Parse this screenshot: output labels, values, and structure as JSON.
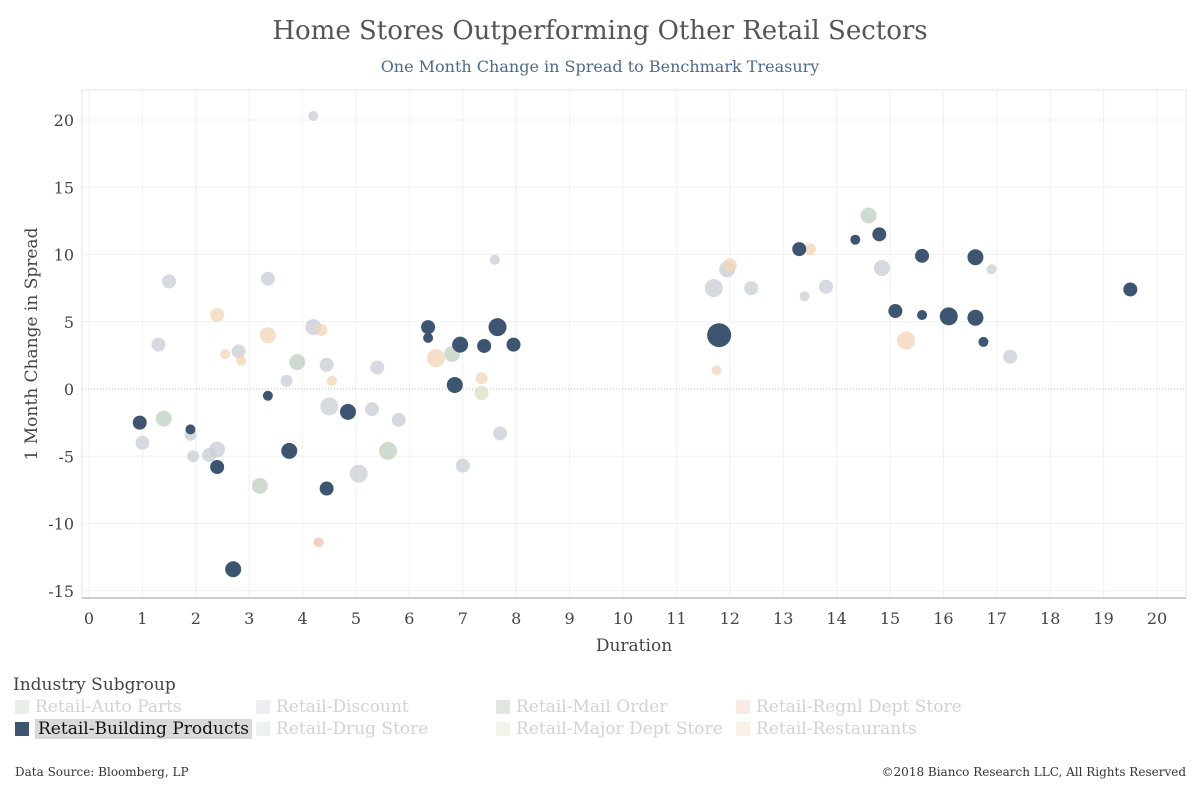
{
  "colors": {
    "Retail-Auto Parts": "#bfcfc0",
    "Retail-Discount": "#c8ced6",
    "Retail-Mail Order": "#a9b8a8",
    "Retail-Regnl Dept Store": "#efc2ae",
    "Retail-Building Products": "#3d5570",
    "Retail-Drug Store": "#c9dccf",
    "Retail-Major Dept Store": "#dedcc0",
    "Retail-Restaurants": "#f1d4b6"
  },
  "legend": {
    "title": "Industry Subgroup",
    "active": "Retail-Building Products",
    "items": [
      "Retail-Auto Parts",
      "Retail-Discount",
      "Retail-Mail Order",
      "Retail-Regnl Dept Store",
      "Retail-Building Products",
      "Retail-Drug Store",
      "Retail-Major Dept Store",
      "Retail-Restaurants"
    ]
  },
  "footer": {
    "source": "Data Source: Bloomberg, LP",
    "copyright": "©2018 Bianco Research LLC, All Rights Reserved"
  },
  "chart_data": {
    "type": "scatter",
    "title": "Home Stores Outperforming Other Retail Sectors",
    "subtitle": "One Month Change in Spread to Benchmark Treasury",
    "xlabel": "Duration",
    "ylabel": "1 Month Change in Spread",
    "xlim": [
      0,
      20.5
    ],
    "ylim": [
      -16,
      22
    ],
    "xticks": [
      0,
      1,
      2,
      3,
      4,
      5,
      6,
      7,
      8,
      9,
      10,
      11,
      12,
      13,
      14,
      15,
      16,
      17,
      18,
      19,
      20
    ],
    "yticks": [
      -15,
      -10,
      -5,
      0,
      5,
      10,
      15,
      20
    ],
    "grid": true,
    "legend_position": "bottom",
    "series": [
      {
        "name": "Retail-Auto Parts",
        "points": [
          {
            "x": 1.4,
            "y": -2.2,
            "s": 8
          },
          {
            "x": 3.2,
            "y": -7.2,
            "s": 8
          },
          {
            "x": 3.9,
            "y": 2.0,
            "s": 8
          },
          {
            "x": 5.6,
            "y": -4.6,
            "s": 9
          },
          {
            "x": 6.8,
            "y": 2.6,
            "s": 8
          },
          {
            "x": 14.6,
            "y": 12.9,
            "s": 8
          }
        ]
      },
      {
        "name": "Retail-Discount",
        "points": [
          {
            "x": 1.0,
            "y": -4.0,
            "s": 7
          },
          {
            "x": 1.3,
            "y": 3.3,
            "s": 7
          },
          {
            "x": 1.5,
            "y": 8.0,
            "s": 7
          },
          {
            "x": 1.9,
            "y": -3.4,
            "s": 6
          },
          {
            "x": 1.95,
            "y": -5.0,
            "s": 6
          },
          {
            "x": 2.25,
            "y": -4.9,
            "s": 7
          },
          {
            "x": 2.4,
            "y": -4.5,
            "s": 8
          },
          {
            "x": 2.8,
            "y": 2.8,
            "s": 7
          },
          {
            "x": 3.35,
            "y": 8.2,
            "s": 7
          },
          {
            "x": 3.7,
            "y": 0.6,
            "s": 6
          },
          {
            "x": 4.2,
            "y": 4.6,
            "s": 8
          },
          {
            "x": 4.2,
            "y": 20.3,
            "s": 5
          },
          {
            "x": 4.45,
            "y": 1.8,
            "s": 7
          },
          {
            "x": 4.5,
            "y": -1.3,
            "s": 9
          },
          {
            "x": 5.05,
            "y": -6.3,
            "s": 9
          },
          {
            "x": 5.3,
            "y": -1.5,
            "s": 7
          },
          {
            "x": 5.4,
            "y": 1.6,
            "s": 7
          },
          {
            "x": 5.8,
            "y": -2.3,
            "s": 7
          },
          {
            "x": 7.0,
            "y": -5.7,
            "s": 7
          },
          {
            "x": 7.6,
            "y": 9.6,
            "s": 5
          },
          {
            "x": 7.7,
            "y": -3.3,
            "s": 7
          },
          {
            "x": 11.7,
            "y": 7.5,
            "s": 9
          },
          {
            "x": 11.95,
            "y": 8.9,
            "s": 8
          },
          {
            "x": 12.4,
            "y": 7.5,
            "s": 7
          },
          {
            "x": 13.4,
            "y": 6.9,
            "s": 5
          },
          {
            "x": 13.8,
            "y": 7.6,
            "s": 7
          },
          {
            "x": 14.85,
            "y": 9.0,
            "s": 8
          },
          {
            "x": 16.9,
            "y": 8.9,
            "s": 5
          },
          {
            "x": 17.25,
            "y": 2.4,
            "s": 7
          }
        ]
      },
      {
        "name": "Retail-Mail Order",
        "points": []
      },
      {
        "name": "Retail-Regnl Dept Store",
        "points": [
          {
            "x": 4.3,
            "y": -11.4,
            "s": 5
          }
        ]
      },
      {
        "name": "Retail-Building Products",
        "points": [
          {
            "x": 0.95,
            "y": -2.5,
            "s": 7
          },
          {
            "x": 1.9,
            "y": -3.0,
            "s": 5
          },
          {
            "x": 2.4,
            "y": -5.8,
            "s": 7
          },
          {
            "x": 2.7,
            "y": -13.4,
            "s": 8
          },
          {
            "x": 3.35,
            "y": -0.5,
            "s": 5
          },
          {
            "x": 3.75,
            "y": -4.6,
            "s": 8
          },
          {
            "x": 4.45,
            "y": -7.4,
            "s": 7
          },
          {
            "x": 4.85,
            "y": -1.7,
            "s": 8
          },
          {
            "x": 6.35,
            "y": 4.6,
            "s": 7
          },
          {
            "x": 6.35,
            "y": 3.8,
            "s": 5
          },
          {
            "x": 6.85,
            "y": 0.3,
            "s": 8
          },
          {
            "x": 6.95,
            "y": 3.3,
            "s": 8
          },
          {
            "x": 7.4,
            "y": 3.2,
            "s": 7
          },
          {
            "x": 7.65,
            "y": 4.6,
            "s": 9
          },
          {
            "x": 7.95,
            "y": 3.3,
            "s": 7
          },
          {
            "x": 11.8,
            "y": 4.0,
            "s": 12
          },
          {
            "x": 13.3,
            "y": 10.4,
            "s": 7
          },
          {
            "x": 14.35,
            "y": 11.1,
            "s": 5
          },
          {
            "x": 14.8,
            "y": 11.5,
            "s": 7
          },
          {
            "x": 15.1,
            "y": 5.8,
            "s": 7
          },
          {
            "x": 15.6,
            "y": 9.9,
            "s": 7
          },
          {
            "x": 15.6,
            "y": 5.5,
            "s": 5
          },
          {
            "x": 16.1,
            "y": 5.4,
            "s": 9
          },
          {
            "x": 16.6,
            "y": 9.8,
            "s": 8
          },
          {
            "x": 16.6,
            "y": 5.3,
            "s": 8
          },
          {
            "x": 16.75,
            "y": 3.5,
            "s": 5
          },
          {
            "x": 19.5,
            "y": 7.4,
            "s": 7
          }
        ]
      },
      {
        "name": "Retail-Drug Store",
        "points": []
      },
      {
        "name": "Retail-Major Dept Store",
        "points": [
          {
            "x": 7.35,
            "y": -0.3,
            "s": 7
          }
        ]
      },
      {
        "name": "Retail-Restaurants",
        "points": [
          {
            "x": 2.4,
            "y": 5.5,
            "s": 7
          },
          {
            "x": 2.55,
            "y": 2.6,
            "s": 5
          },
          {
            "x": 2.85,
            "y": 2.1,
            "s": 5
          },
          {
            "x": 3.35,
            "y": 4.0,
            "s": 8
          },
          {
            "x": 4.35,
            "y": 4.4,
            "s": 6
          },
          {
            "x": 4.55,
            "y": 0.6,
            "s": 5
          },
          {
            "x": 6.5,
            "y": 2.3,
            "s": 9
          },
          {
            "x": 7.35,
            "y": 0.8,
            "s": 6
          },
          {
            "x": 11.75,
            "y": 1.4,
            "s": 5
          },
          {
            "x": 12.0,
            "y": 9.2,
            "s": 7
          },
          {
            "x": 13.5,
            "y": 10.4,
            "s": 6
          },
          {
            "x": 15.3,
            "y": 3.6,
            "s": 9
          }
        ]
      }
    ]
  }
}
